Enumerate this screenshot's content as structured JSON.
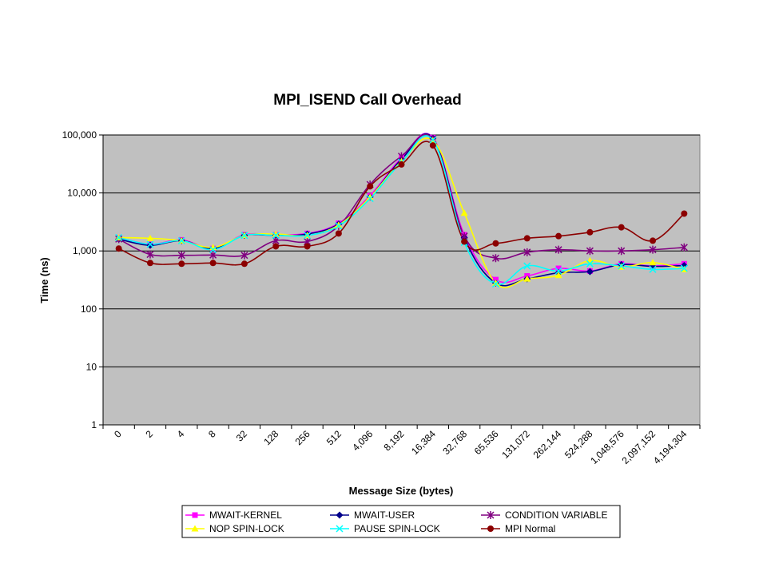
{
  "chart_data": {
    "type": "line",
    "title": "MPI_ISEND Call Overhead",
    "xlabel": "Message Size (bytes)",
    "ylabel": "Time (ns)",
    "y_scale": "log",
    "ylim": [
      1,
      100000
    ],
    "y_ticks": [
      "1",
      "10",
      "100",
      "1,000",
      "10,000",
      "100,000"
    ],
    "y_tick_values": [
      1,
      10,
      100,
      1000,
      10000,
      100000
    ],
    "categories": [
      "0",
      "2",
      "4",
      "8",
      "32",
      "128",
      "256",
      "512",
      "4,096",
      "8,192",
      "16,384",
      "32,768",
      "65,536",
      "131,072",
      "262,144",
      "524,288",
      "1,048,576",
      "2,097,152",
      "4,194,304"
    ],
    "plot_background": "#c0c0c0",
    "grid": "horizontal",
    "legend_position": "bottom",
    "series": [
      {
        "name": "MWAIT-KERNEL",
        "color": "#ff00ff",
        "marker": "square",
        "values": [
          1700,
          1300,
          1550,
          1100,
          1900,
          1900,
          2000,
          3000,
          9000,
          40000,
          90000,
          1900,
          320,
          370,
          500,
          450,
          600,
          550,
          600
        ]
      },
      {
        "name": "MWAIT-USER",
        "color": "#00008b",
        "marker": "diamond",
        "values": [
          1600,
          1250,
          1500,
          1100,
          1850,
          1850,
          1950,
          2900,
          8500,
          38000,
          88000,
          1700,
          280,
          330,
          420,
          440,
          580,
          540,
          560
        ]
      },
      {
        "name": "CONDITION VARIABLE",
        "color": "#800080",
        "marker": "star",
        "values": [
          1600,
          870,
          840,
          850,
          840,
          1500,
          1450,
          2700,
          14000,
          43000,
          85000,
          1800,
          750,
          950,
          1050,
          1000,
          1000,
          1050,
          1150
        ]
      },
      {
        "name": "NOP SPIN-LOCK",
        "color": "#ffff00",
        "marker": "triangle",
        "values": [
          1700,
          1650,
          1500,
          1150,
          1850,
          1950,
          1850,
          2800,
          8500,
          35000,
          80000,
          4500,
          280,
          330,
          380,
          680,
          530,
          630,
          480
        ]
      },
      {
        "name": "PAUSE SPIN-LOCK",
        "color": "#00ffff",
        "marker": "x",
        "values": [
          1700,
          1300,
          1500,
          1050,
          1850,
          1850,
          1850,
          2700,
          8000,
          34000,
          82000,
          1400,
          270,
          550,
          450,
          600,
          550,
          480,
          500
        ]
      },
      {
        "name": "MPI Normal",
        "color": "#8b0000",
        "marker": "circle",
        "values": [
          1100,
          620,
          600,
          620,
          600,
          1200,
          1200,
          2000,
          13000,
          31000,
          66000,
          1450,
          1350,
          1650,
          1800,
          2100,
          2550,
          1500,
          4400
        ]
      }
    ]
  }
}
